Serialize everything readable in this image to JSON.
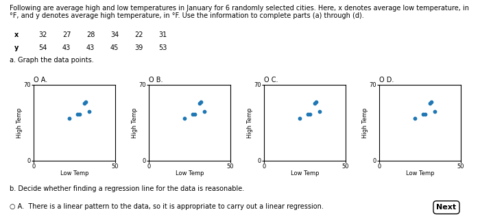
{
  "title": "Following are average high and low temperatures in January for 6 randomly selected cities. Here, x denotes average low temperature, in °F, and y denotes average high temperature, in °F. Use the information to complete parts (a) through (d).",
  "table": {
    "row_labels": [
      "x",
      "y"
    ],
    "rows": [
      [
        32,
        27,
        28,
        34,
        22,
        31
      ],
      [
        54,
        43,
        43,
        45,
        39,
        53
      ]
    ]
  },
  "annotations": [
    "a. Graph the data points.",
    "b. Decide whether finding a regression line for the data is reasonable.",
    "○ A.  There is a linear pattern to the data, so it is appropriate to carry out a linear regression."
  ],
  "button": "Next",
  "chart_data": [
    {
      "type": "scatter",
      "title": "O A.",
      "x": [
        32,
        27,
        28,
        34,
        22,
        31
      ],
      "values": [
        54,
        43,
        43,
        45,
        39,
        53
      ],
      "x_label": "Low Temp",
      "y_label": "High Temp",
      "xlim": [
        0,
        50
      ],
      "ylim": [
        0,
        70
      ],
      "xticks": [
        0,
        50
      ],
      "yticks": [
        0,
        70
      ],
      "grid": true
    },
    {
      "type": "scatter",
      "title": "O B.",
      "x": [
        32,
        27,
        28,
        34,
        22,
        31
      ],
      "values": [
        54,
        43,
        43,
        45,
        39,
        53
      ],
      "x_label": "Low Temp",
      "y_label": "High Temp",
      "xlim": [
        0,
        50
      ],
      "ylim": [
        0,
        70
      ],
      "xticks": [
        0,
        50
      ],
      "yticks": [
        0,
        70
      ],
      "grid": true
    },
    {
      "type": "scatter",
      "title": "O C.",
      "x": [
        32,
        27,
        28,
        34,
        22,
        31
      ],
      "values": [
        54,
        43,
        43,
        45,
        39,
        53
      ],
      "x_label": "Low Temp",
      "y_label": "High Temp",
      "xlim": [
        0,
        50
      ],
      "ylim": [
        0,
        70
      ],
      "xticks": [
        0,
        50
      ],
      "yticks": [
        0,
        70
      ],
      "grid": true
    },
    {
      "type": "scatter",
      "title": "O D.",
      "x": [
        32,
        27,
        28,
        34,
        22,
        31
      ],
      "values": [
        54,
        43,
        43,
        45,
        39,
        53
      ],
      "x_label": "Low Temp",
      "y_label": "High Temp",
      "xlim": [
        0,
        50
      ],
      "ylim": [
        0,
        70
      ],
      "xticks": [
        0,
        50
      ],
      "yticks": [
        0,
        70
      ],
      "grid": true
    }
  ]
}
